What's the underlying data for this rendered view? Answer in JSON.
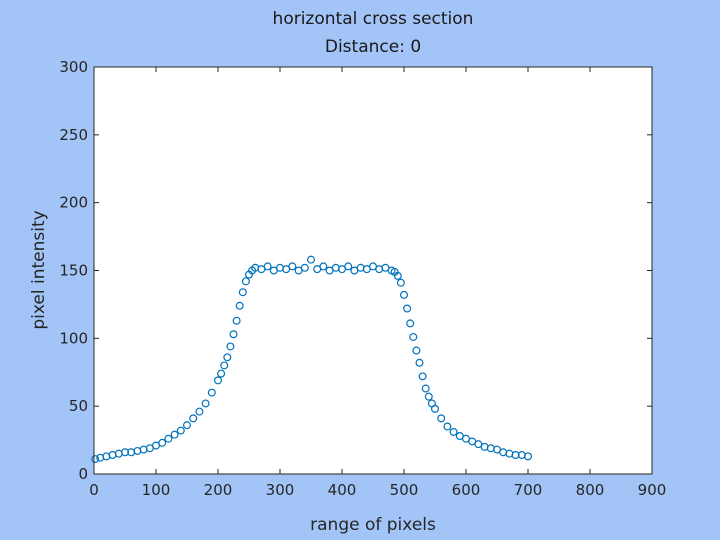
{
  "chart_data": {
    "type": "scatter",
    "title": "horizontal cross section",
    "subtitle": "Distance: 0",
    "xlabel": "range of pixels",
    "ylabel": "pixel intensity",
    "xlim": [
      0,
      900
    ],
    "ylim": [
      0,
      300
    ],
    "xticks": [
      0,
      100,
      200,
      300,
      400,
      500,
      600,
      700,
      800,
      900
    ],
    "yticks": [
      0,
      50,
      100,
      150,
      200,
      250,
      300
    ],
    "grid": false,
    "marker": "open-circle",
    "colors": {
      "background": "#a3c4f7",
      "plot_area": "#ffffff",
      "series": "#0072bd",
      "axes": "#262626"
    },
    "series": [
      {
        "values_note": "",
        "x": [
          2,
          10,
          20,
          30,
          40,
          50,
          60,
          70,
          80,
          90,
          100,
          110,
          120,
          130,
          140,
          150,
          160,
          170,
          180,
          190,
          200,
          205,
          210,
          215,
          220,
          225,
          230,
          235,
          240,
          245,
          250,
          255,
          260,
          270,
          280,
          290,
          300,
          310,
          320,
          330,
          340,
          350,
          360,
          370,
          380,
          390,
          400,
          410,
          420,
          430,
          440,
          450,
          460,
          470,
          480,
          485,
          490,
          495,
          500,
          505,
          510,
          515,
          520,
          525,
          530,
          535,
          540,
          545,
          550,
          560,
          570,
          580,
          590,
          600,
          610,
          620,
          630,
          640,
          650,
          660,
          670,
          680,
          690,
          700
        ],
        "y": [
          11,
          12,
          13,
          14,
          15,
          16,
          16,
          17,
          18,
          19,
          21,
          23,
          26,
          29,
          32,
          36,
          41,
          46,
          52,
          60,
          69,
          74,
          80,
          86,
          94,
          103,
          113,
          124,
          134,
          142,
          147,
          150,
          152,
          151,
          153,
          150,
          152,
          151,
          153,
          150,
          152,
          158,
          151,
          153,
          150,
          152,
          151,
          153,
          150,
          152,
          151,
          153,
          151,
          152,
          150,
          149,
          146,
          141,
          132,
          122,
          111,
          101,
          91,
          82,
          72,
          63,
          57,
          52,
          48,
          41,
          35,
          31,
          28,
          26,
          24,
          22,
          20,
          19,
          18,
          16,
          15,
          14,
          14,
          13
        ]
      }
    ]
  }
}
